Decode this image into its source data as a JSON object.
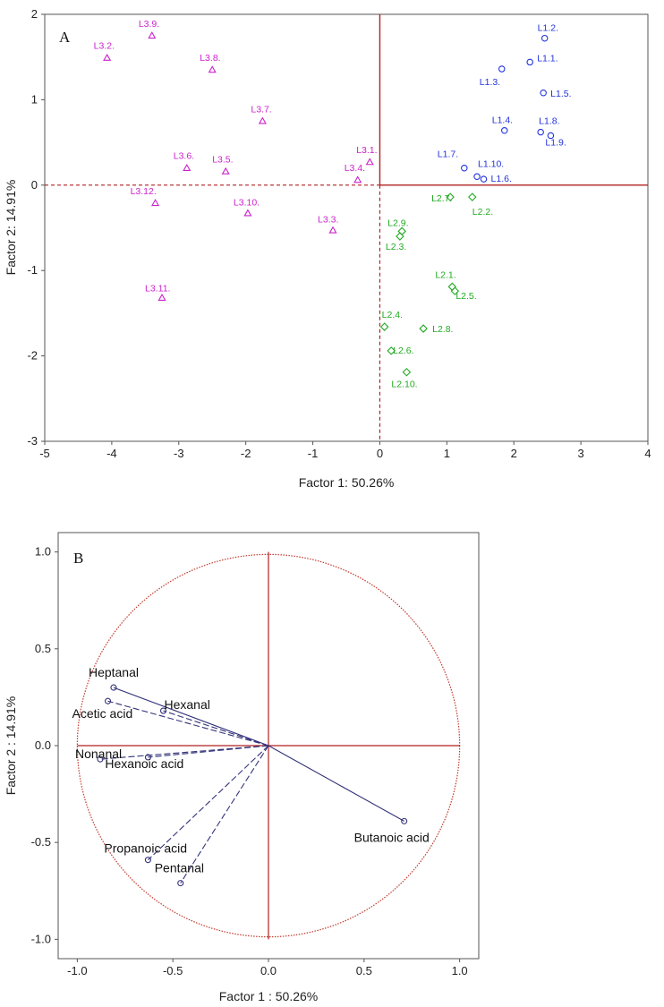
{
  "chart_data": [
    {
      "panel": "A",
      "type": "scatter",
      "xlabel": "Factor 1: 50.26%",
      "ylabel": "Factor 2: 14.91%",
      "xlim": [
        -5,
        4
      ],
      "ylim": [
        -3,
        2
      ],
      "xticks": [
        "-5",
        "-4",
        "-3",
        "-2",
        "-1",
        "0",
        "1",
        "2",
        "3",
        "4"
      ],
      "yticks": [
        "2",
        "1",
        "0",
        "-1",
        "-2",
        "-3"
      ],
      "reference_lines": {
        "x": 0,
        "y": 0,
        "left_and_bottom_dashed": true
      },
      "series": [
        {
          "name": "L1",
          "marker": "circle",
          "color": "#2233dd",
          "points": [
            {
              "label": "L1.1.",
              "x": 2.24,
              "y": 1.44
            },
            {
              "label": "L1.2.",
              "x": 2.46,
              "y": 1.72
            },
            {
              "label": "L1.3.",
              "x": 1.82,
              "y": 1.36
            },
            {
              "label": "L1.4.",
              "x": 1.86,
              "y": 0.64
            },
            {
              "label": "L1.5.",
              "x": 2.44,
              "y": 1.08
            },
            {
              "label": "L1.6.",
              "x": 1.55,
              "y": 0.07
            },
            {
              "label": "L1.7.",
              "x": 1.26,
              "y": 0.2
            },
            {
              "label": "L1.8.",
              "x": 2.4,
              "y": 0.62
            },
            {
              "label": "L1.9.",
              "x": 2.55,
              "y": 0.58
            },
            {
              "label": "L1.10.",
              "x": 1.45,
              "y": 0.1
            }
          ]
        },
        {
          "name": "L2",
          "marker": "diamond",
          "color": "#22aa22",
          "points": [
            {
              "label": "L2.1.",
              "x": 1.08,
              "y": -1.19
            },
            {
              "label": "L2.2.",
              "x": 1.38,
              "y": -0.14
            },
            {
              "label": "L2.3.",
              "x": 0.3,
              "y": -0.6
            },
            {
              "label": "L2.4.",
              "x": 0.07,
              "y": -1.66
            },
            {
              "label": "L2.5.",
              "x": 1.12,
              "y": -1.24
            },
            {
              "label": "L2.6.",
              "x": 0.17,
              "y": -1.94
            },
            {
              "label": "L2.7.",
              "x": 1.05,
              "y": -0.14
            },
            {
              "label": "L2.8.",
              "x": 0.65,
              "y": -1.68
            },
            {
              "label": "L2.9.",
              "x": 0.33,
              "y": -0.54
            },
            {
              "label": "L2.10.",
              "x": 0.4,
              "y": -2.19
            }
          ]
        },
        {
          "name": "L3",
          "marker": "triangle",
          "color": "#cc22cc",
          "points": [
            {
              "label": "L3.1.",
              "x": -0.15,
              "y": 0.27
            },
            {
              "label": "L3.2.",
              "x": -4.07,
              "y": 1.49
            },
            {
              "label": "L3.3.",
              "x": -0.7,
              "y": -0.53
            },
            {
              "label": "L3.4.",
              "x": -0.33,
              "y": 0.06
            },
            {
              "label": "L3.5.",
              "x": -2.3,
              "y": 0.16
            },
            {
              "label": "L3.6.",
              "x": -2.88,
              "y": 0.2
            },
            {
              "label": "L3.7.",
              "x": -1.75,
              "y": 0.75
            },
            {
              "label": "L3.8.",
              "x": -2.5,
              "y": 1.35
            },
            {
              "label": "L3.9.",
              "x": -3.4,
              "y": 1.75
            },
            {
              "label": "L3.10.",
              "x": -1.97,
              "y": -0.33
            },
            {
              "label": "L3.11.",
              "x": -3.25,
              "y": -1.32
            },
            {
              "label": "L3.12.",
              "x": -3.35,
              "y": -0.21
            }
          ]
        }
      ]
    },
    {
      "panel": "B",
      "type": "scatter",
      "subtype": "loading-circle",
      "xlabel": "Factor 1 : 50.26%",
      "ylabel": "Factor 2 : 14.91%",
      "xlim": [
        -1.1,
        1.1
      ],
      "ylim": [
        -1.1,
        1.1
      ],
      "xticks": [
        "-1.0",
        "-0.5",
        "0.0",
        "0.5",
        "1.0"
      ],
      "yticks": [
        "1.0",
        "0.5",
        "0.0",
        "-0.5",
        "-1.0"
      ],
      "circle_radius": 1.0,
      "variables": [
        {
          "label": "Heptanal",
          "x": -0.81,
          "y": 0.3,
          "line": "solid"
        },
        {
          "label": "Hexanal",
          "x": -0.55,
          "y": 0.18,
          "line": "dashed"
        },
        {
          "label": "Acetic acid",
          "x": -0.84,
          "y": 0.23,
          "line": "dashed"
        },
        {
          "label": "Nonanal",
          "x": -0.88,
          "y": -0.07,
          "line": "dashed"
        },
        {
          "label": "Hexanoic acid",
          "x": -0.63,
          "y": -0.06,
          "line": "dashed"
        },
        {
          "label": "Propanoic acid",
          "x": -0.63,
          "y": -0.59,
          "line": "dashed"
        },
        {
          "label": "Pentanal",
          "x": -0.46,
          "y": -0.71,
          "line": "dashed"
        },
        {
          "label": "Butanoic acid",
          "x": 0.71,
          "y": -0.39,
          "line": "solid"
        }
      ]
    }
  ],
  "colors": {
    "axis_red": "#b22222",
    "circle_red": "#c0392b",
    "vector_blue": "#33337a",
    "frame": "#555555"
  }
}
